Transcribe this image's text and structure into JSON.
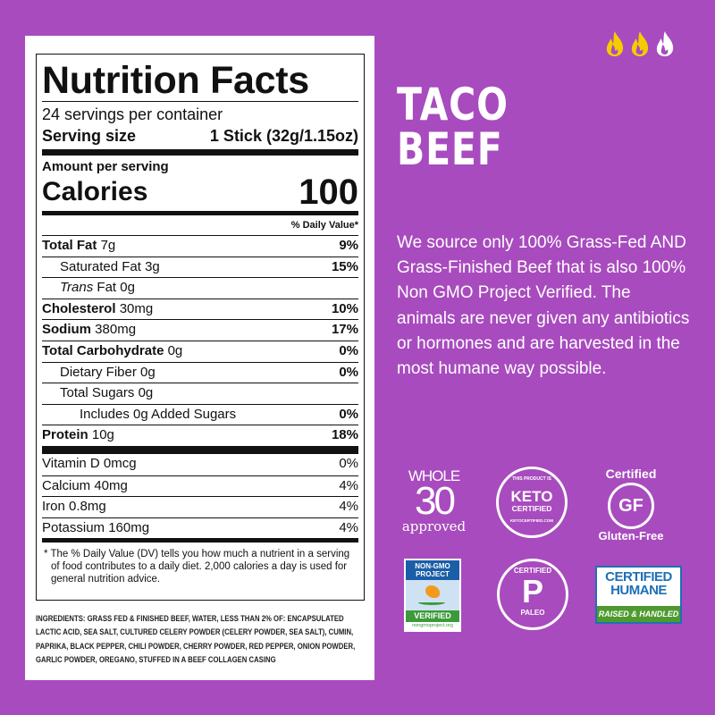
{
  "spice_level": {
    "value": 2,
    "max": 3,
    "colors": {
      "active": "#f5cc00",
      "inactive": "#ffffff"
    }
  },
  "product": {
    "line1": "TACO",
    "line2": "BEEF",
    "description": "We source only 100% Grass-Fed AND Grass-Finished Beef that is also 100% Non GMO Project Verified. The animals are never given any antibiotics or hormones and are harvested in the most humane way possible."
  },
  "nutrition": {
    "title": "Nutrition Facts",
    "servings": "24 servings per container",
    "serving_size_label": "Serving size",
    "serving_size_value": "1 Stick (32g/1.15oz)",
    "amount_per_serving": "Amount per serving",
    "calories_label": "Calories",
    "calories_value": "100",
    "dv_header": "% Daily Value*",
    "rows": [
      {
        "label": "Total Fat",
        "amount": "7g",
        "dv": "9%"
      },
      {
        "label": "Saturated Fat",
        "amount": "3g",
        "dv": "15%"
      },
      {
        "label": "Trans",
        "suffix": "Fat 0g",
        "dv": ""
      },
      {
        "label": "Cholesterol",
        "amount": "30mg",
        "dv": "10%"
      },
      {
        "label": "Sodium",
        "amount": "380mg",
        "dv": "17%"
      },
      {
        "label": "Total Carbohydrate",
        "amount": "0g",
        "dv": "0%"
      },
      {
        "label": "Dietary Fiber",
        "amount": "0g",
        "dv": "0%"
      },
      {
        "label": "Total Sugars",
        "amount": "0g",
        "dv": ""
      },
      {
        "label": "Includes 0g Added Sugars",
        "amount": "",
        "dv": "0%"
      },
      {
        "label": "Protein",
        "amount": "10g",
        "dv": "18%"
      }
    ],
    "vitamins": [
      {
        "label": "Vitamin D 0mcg",
        "dv": "0%"
      },
      {
        "label": "Calcium 40mg",
        "dv": "4%"
      },
      {
        "label": "Iron 0.8mg",
        "dv": "4%"
      },
      {
        "label": "Potassium 160mg",
        "dv": "4%"
      }
    ],
    "footnote": "* The % Daily Value (DV) tells you how much a nutrient in a serving of food contributes to a daily diet. 2,000 calories a day is used for general nutrition advice."
  },
  "ingredients": "INGREDIENTS: GRASS FED & FINISHED BEEF, WATER, LESS THAN 2% OF: ENCAPSULATED LACTIC ACID, SEA SALT, CULTURED CELERY POWDER (CELERY POWDER, SEA SALT), CUMIN, PAPRIKA, BLACK PEPPER, CHILI POWDER, CHERRY POWDER, RED PEPPER, ONION POWDER, GARLIC POWDER, OREGANO, STUFFED IN A BEEF COLLAGEN CASING",
  "badges": {
    "whole30": {
      "top": "WHOLE",
      "num": "30",
      "bottom": "approved"
    },
    "keto": {
      "top": "THIS PRODUCT IS",
      "main1": "KETO",
      "main2": "CERTIFIED",
      "bottom": "KETOCERTIFIED.COM"
    },
    "gf": {
      "top": "Certified",
      "main": "GF",
      "bottom": "Gluten-Free"
    },
    "nongmo": {
      "line1": "NON-GMO",
      "line2": "PROJECT",
      "verified": "VERIFIED",
      "url": "nongmoproject.org"
    },
    "paleo": {
      "top": "CERTIFIED",
      "main": "P",
      "bottom": "PALEO"
    },
    "humane": {
      "line1": "CERTIFIED",
      "line2": "HUMANE",
      "band": "RAISED & HANDLED"
    }
  },
  "colors": {
    "background": "#a84bbe",
    "nongmo_blue": "#1b5ea8",
    "humane_blue": "#1f6fb5",
    "humane_green": "#4e9a2f"
  }
}
